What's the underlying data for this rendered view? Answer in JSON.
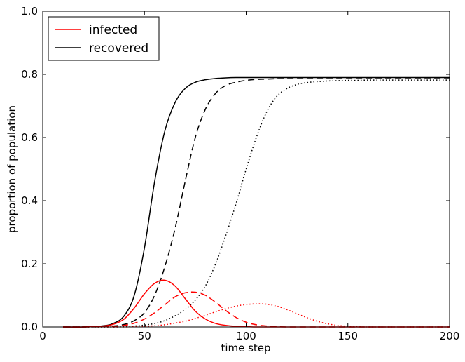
{
  "chart_data": {
    "type": "line",
    "title": "",
    "xlabel": "time step",
    "ylabel": "proportion of population",
    "xlim": [
      0,
      200
    ],
    "ylim": [
      0.0,
      1.0
    ],
    "xticks": [
      0,
      50,
      100,
      150,
      200
    ],
    "yticks": [
      0.0,
      0.2,
      0.4,
      0.6,
      0.8,
      1.0
    ],
    "xtick_labels": [
      "0",
      "50",
      "100",
      "150",
      "200"
    ],
    "ytick_labels": [
      "0.0",
      "0.2",
      "0.4",
      "0.6",
      "0.8",
      "1.0"
    ],
    "grid": false,
    "legend": {
      "location": "top-left",
      "entries": [
        {
          "label": "infected",
          "color": "#ff0000"
        },
        {
          "label": "recovered",
          "color": "#000000"
        }
      ]
    },
    "x": [
      10,
      20,
      30,
      35,
      40,
      45,
      50,
      55,
      60,
      65,
      70,
      75,
      80,
      85,
      90,
      95,
      100,
      105,
      110,
      115,
      120,
      125,
      130,
      135,
      140,
      145,
      150,
      155,
      160,
      165,
      170,
      180,
      190,
      200
    ],
    "series": [
      {
        "name": "recovered (solid)",
        "color": "#000000",
        "style": "solid",
        "values": [
          0.0,
          0.0,
          0.004,
          0.012,
          0.035,
          0.1,
          0.25,
          0.46,
          0.62,
          0.71,
          0.755,
          0.775,
          0.783,
          0.787,
          0.789,
          0.79,
          0.79,
          0.79,
          0.79,
          0.79,
          0.79,
          0.79,
          0.79,
          0.79,
          0.79,
          0.79,
          0.79,
          0.79,
          0.79,
          0.79,
          0.79,
          0.79,
          0.79,
          0.79
        ]
      },
      {
        "name": "recovered (dashed)",
        "color": "#000000",
        "style": "dashed",
        "values": [
          0.0,
          0.0,
          0.001,
          0.003,
          0.008,
          0.02,
          0.045,
          0.1,
          0.19,
          0.31,
          0.46,
          0.6,
          0.69,
          0.74,
          0.765,
          0.775,
          0.781,
          0.784,
          0.785,
          0.786,
          0.786,
          0.786,
          0.786,
          0.786,
          0.786,
          0.786,
          0.786,
          0.786,
          0.786,
          0.786,
          0.786,
          0.786,
          0.786,
          0.786
        ]
      },
      {
        "name": "recovered (dotted)",
        "color": "#000000",
        "style": "dotted",
        "values": [
          0.0,
          0.0,
          0.0,
          0.0,
          0.001,
          0.003,
          0.006,
          0.011,
          0.02,
          0.035,
          0.055,
          0.085,
          0.13,
          0.2,
          0.29,
          0.39,
          0.5,
          0.6,
          0.68,
          0.73,
          0.755,
          0.768,
          0.774,
          0.777,
          0.779,
          0.78,
          0.781,
          0.781,
          0.782,
          0.782,
          0.782,
          0.782,
          0.782,
          0.782
        ]
      },
      {
        "name": "infected (solid)",
        "color": "#ff0000",
        "style": "solid",
        "values": [
          0.0,
          0.0,
          0.003,
          0.009,
          0.025,
          0.06,
          0.105,
          0.138,
          0.148,
          0.13,
          0.09,
          0.05,
          0.025,
          0.011,
          0.005,
          0.002,
          0.001,
          0.0,
          0.0,
          0.0,
          0.0,
          0.0,
          0.0,
          0.0,
          0.0,
          0.0,
          0.0,
          0.0,
          0.0,
          0.0,
          0.0,
          0.0,
          0.0,
          0.0
        ]
      },
      {
        "name": "infected (dashed)",
        "color": "#ff0000",
        "style": "dashed",
        "values": [
          0.0,
          0.0,
          0.001,
          0.002,
          0.005,
          0.012,
          0.025,
          0.045,
          0.07,
          0.095,
          0.108,
          0.11,
          0.1,
          0.078,
          0.052,
          0.03,
          0.015,
          0.007,
          0.003,
          0.001,
          0.0,
          0.0,
          0.0,
          0.0,
          0.0,
          0.0,
          0.0,
          0.0,
          0.0,
          0.0,
          0.0,
          0.0,
          0.0,
          0.0
        ]
      },
      {
        "name": "infected (dotted)",
        "color": "#ff0000",
        "style": "dotted",
        "values": [
          0.0,
          0.0,
          0.0,
          0.0,
          0.0,
          0.001,
          0.002,
          0.004,
          0.007,
          0.012,
          0.018,
          0.027,
          0.037,
          0.048,
          0.058,
          0.066,
          0.071,
          0.073,
          0.072,
          0.066,
          0.055,
          0.042,
          0.029,
          0.018,
          0.01,
          0.005,
          0.002,
          0.001,
          0.0,
          0.0,
          0.0,
          0.0,
          0.0,
          0.0
        ]
      }
    ]
  }
}
